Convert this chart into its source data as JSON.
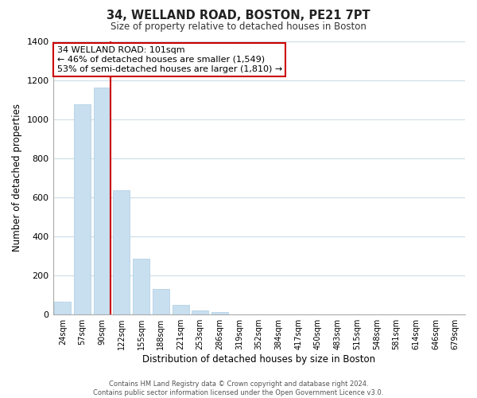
{
  "title": "34, WELLAND ROAD, BOSTON, PE21 7PT",
  "subtitle": "Size of property relative to detached houses in Boston",
  "xlabel": "Distribution of detached houses by size in Boston",
  "ylabel": "Number of detached properties",
  "bar_labels": [
    "24sqm",
    "57sqm",
    "90sqm",
    "122sqm",
    "155sqm",
    "188sqm",
    "221sqm",
    "253sqm",
    "286sqm",
    "319sqm",
    "352sqm",
    "384sqm",
    "417sqm",
    "450sqm",
    "483sqm",
    "515sqm",
    "548sqm",
    "581sqm",
    "614sqm",
    "646sqm",
    "679sqm"
  ],
  "bar_values": [
    65,
    1075,
    1160,
    635,
    285,
    130,
    48,
    20,
    13,
    0,
    0,
    0,
    0,
    0,
    0,
    0,
    0,
    0,
    0,
    0,
    0
  ],
  "bar_color": "#c8dff0",
  "bar_edge_color": "#aacce0",
  "vline_color": "#cc0000",
  "ylim": [
    0,
    1400
  ],
  "yticks": [
    0,
    200,
    400,
    600,
    800,
    1000,
    1200,
    1400
  ],
  "annotation_title": "34 WELLAND ROAD: 101sqm",
  "annotation_line1": "← 46% of detached houses are smaller (1,549)",
  "annotation_line2": "53% of semi-detached houses are larger (1,810) →",
  "annotation_box_color": "#ffffff",
  "annotation_box_edge": "#cc0000",
  "footer_line1": "Contains HM Land Registry data © Crown copyright and database right 2024.",
  "footer_line2": "Contains public sector information licensed under the Open Government Licence v3.0.",
  "background_color": "#ffffff",
  "grid_color": "#ccdde8"
}
